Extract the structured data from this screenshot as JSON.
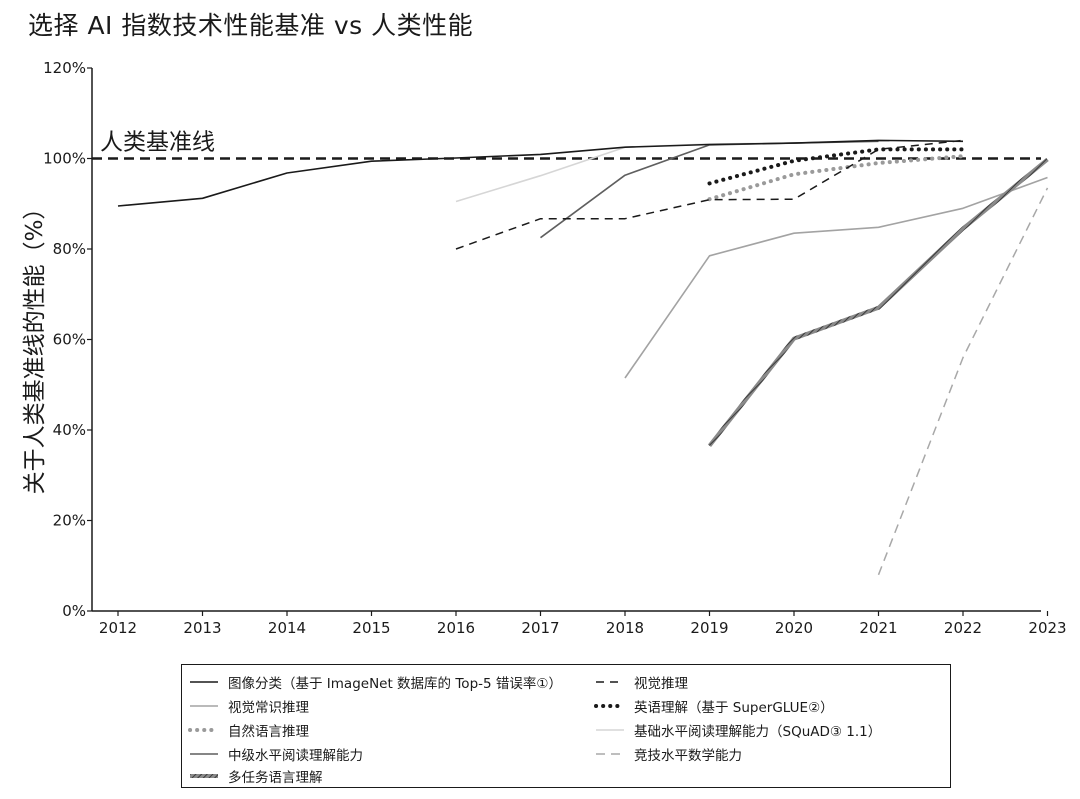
{
  "title": "选择 AI 指数技术性能基准 vs 人类性能",
  "chart_data": {
    "type": "line",
    "title": "选择 AI 指数技术性能基准 vs 人类性能",
    "ylabel": "关于人类基准线的性能（%）",
    "xlabel": "",
    "xlim": [
      2011.7,
      2023
    ],
    "ylim": [
      0,
      120
    ],
    "x_ticks": [
      "2012",
      "2013",
      "2014",
      "2015",
      "2016",
      "2017",
      "2018",
      "2019",
      "2020",
      "2021",
      "2022",
      "2023"
    ],
    "y_ticks": [
      "0%",
      "20%",
      "40%",
      "60%",
      "80%",
      "100%",
      "120%"
    ],
    "baseline": {
      "value": 100,
      "label": "人类基准线"
    },
    "series": [
      {
        "name": "图像分类（基于 ImageNet 数据库的 Top-5 错误率①）",
        "style": "solid",
        "color": "#1a1a1a",
        "points": [
          [
            2012,
            89.5
          ],
          [
            2013,
            91.2
          ],
          [
            2014,
            96.8
          ],
          [
            2015,
            99.4
          ],
          [
            2016,
            100.1
          ],
          [
            2017,
            100.9
          ],
          [
            2018,
            102.5
          ],
          [
            2019,
            103.1
          ],
          [
            2020,
            103.4
          ],
          [
            2021,
            104.0
          ],
          [
            2022,
            103.8
          ]
        ]
      },
      {
        "name": "视觉推理",
        "style": "dashed",
        "color": "#1a1a1a",
        "points": [
          [
            2016,
            80.0
          ],
          [
            2017,
            86.7
          ],
          [
            2018,
            86.7
          ],
          [
            2019,
            90.9
          ],
          [
            2020,
            91.0
          ],
          [
            2021,
            102.0
          ],
          [
            2022,
            104.0
          ]
        ]
      },
      {
        "name": "视觉常识推理",
        "style": "solid",
        "color": "#a3a3a3",
        "points": [
          [
            2018,
            51.5
          ],
          [
            2019,
            78.5
          ],
          [
            2020,
            83.5
          ],
          [
            2021,
            84.8
          ],
          [
            2022,
            89.0
          ],
          [
            2023,
            95.8
          ]
        ]
      },
      {
        "name": "英语理解（基于 SuperGLUE②）",
        "style": "dotted",
        "color": "#1a1a1a",
        "points": [
          [
            2019,
            94.5
          ],
          [
            2020,
            99.5
          ],
          [
            2021,
            102.0
          ],
          [
            2022,
            102.0
          ]
        ]
      },
      {
        "name": "自然语言推理",
        "style": "dotted",
        "color": "#9a9a9a",
        "points": [
          [
            2019,
            91.0
          ],
          [
            2020,
            96.5
          ],
          [
            2021,
            99.0
          ],
          [
            2022,
            100.5
          ]
        ]
      },
      {
        "name": "基础水平阅读理解能力（SQuAD③ 1.1）",
        "style": "solid",
        "color": "#d6d6d6",
        "points": [
          [
            2016,
            90.5
          ],
          [
            2017,
            96.2
          ],
          [
            2018,
            102.5
          ],
          [
            2019,
            103.2
          ],
          [
            2020,
            103.4
          ],
          [
            2021,
            103.9
          ]
        ]
      },
      {
        "name": "中级水平阅读理解能力",
        "style": "solid",
        "color": "#5f5f5f",
        "points": [
          [
            2017,
            82.5
          ],
          [
            2018,
            96.3
          ],
          [
            2019,
            103.0
          ],
          [
            2020,
            103.4
          ],
          [
            2021,
            103.8
          ]
        ]
      },
      {
        "name": "竞技水平数学能力",
        "style": "dashed",
        "color": "#a8a8a8",
        "points": [
          [
            2021,
            8.0
          ],
          [
            2022,
            56.0
          ],
          [
            2023,
            93.5
          ]
        ]
      },
      {
        "name": "多任务语言理解",
        "style": "hatched",
        "color": "#5f5f5f",
        "points": [
          [
            2019,
            36.5
          ],
          [
            2020,
            60.2
          ],
          [
            2021,
            67.0
          ],
          [
            2022,
            84.5
          ],
          [
            2023,
            99.8
          ]
        ]
      }
    ],
    "legend": {
      "placement": "bottom",
      "columns": 2
    }
  }
}
